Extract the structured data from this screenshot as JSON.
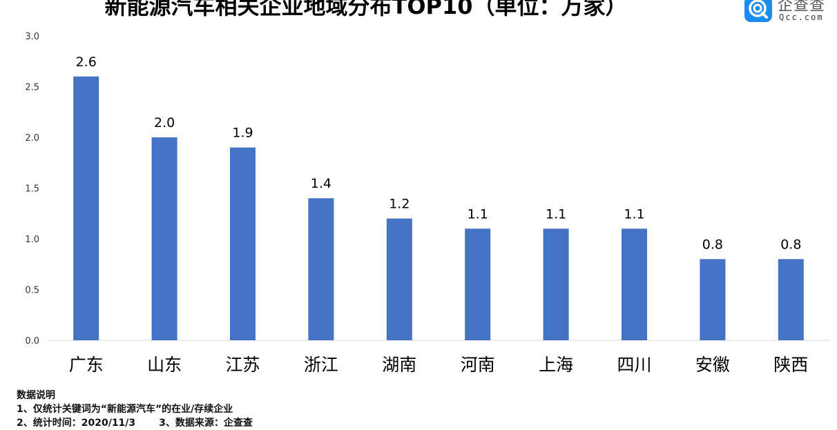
{
  "header": {
    "title": "新能源汽车相关企业地域分布TOP10（单位：万家）"
  },
  "logo": {
    "cn_text": "企查查",
    "en_text": "Qcc.com"
  },
  "chart_data": {
    "type": "bar",
    "title": "新能源汽车相关企业地域分布TOP10（单位：万家）",
    "categories": [
      "广东",
      "山东",
      "江苏",
      "浙江",
      "湖南",
      "河南",
      "上海",
      "四川",
      "安徽",
      "陕西"
    ],
    "values": [
      2.6,
      2.0,
      1.9,
      1.4,
      1.2,
      1.1,
      1.1,
      1.1,
      0.8,
      0.8
    ],
    "value_labels": [
      "2.6",
      "2.0",
      "1.9",
      "1.4",
      "1.2",
      "1.1",
      "1.1",
      "1.1",
      "0.8",
      "0.8"
    ],
    "y_ticks": [
      "0.0",
      "0.5",
      "1.0",
      "1.5",
      "2.0",
      "2.5",
      "3.0"
    ],
    "ylim": [
      0,
      3.0
    ],
    "xlabel": "",
    "ylabel": "",
    "grid": false,
    "legend": "none",
    "bar_color": "#4472c4"
  },
  "notes": {
    "heading": "数据说明",
    "line1": "1、仅统计关键词为“新能源汽车”的在业/存续企业",
    "line2a": "2、统计时间：2020/11/3",
    "line2b": "3、数据来源：企查查"
  }
}
